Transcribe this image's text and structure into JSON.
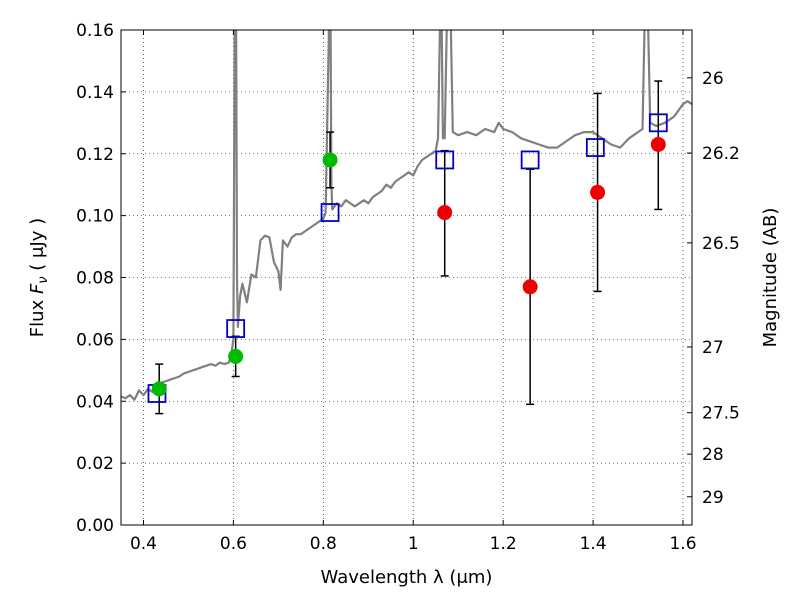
{
  "chart_data": {
    "type": "scatter",
    "title": "",
    "xlabel": "Wavelength  λ (μm)",
    "ylabel": "Flux  F_ν  ( μJy )",
    "ylabel_parts": {
      "prefix": "Flux  ",
      "symbol": "F",
      "subscript": "ν",
      "suffix": "  ( μJy )"
    },
    "y2label": "Magnitude (AB)",
    "xlim": [
      0.35,
      1.62
    ],
    "ylim": [
      0.0,
      0.16
    ],
    "grid": true,
    "xticks": [
      {
        "value": 0.4,
        "label": "0.4"
      },
      {
        "value": 0.6,
        "label": "0.6"
      },
      {
        "value": 0.8,
        "label": "0.8"
      },
      {
        "value": 1.0,
        "label": "1"
      },
      {
        "value": 1.2,
        "label": "1.2"
      },
      {
        "value": 1.4,
        "label": "1.4"
      },
      {
        "value": 1.6,
        "label": "1.6"
      }
    ],
    "yticks": [
      {
        "value": 0.0,
        "label": "0.00"
      },
      {
        "value": 0.02,
        "label": "0.02"
      },
      {
        "value": 0.04,
        "label": "0.04"
      },
      {
        "value": 0.06,
        "label": "0.06"
      },
      {
        "value": 0.08,
        "label": "0.08"
      },
      {
        "value": 0.1,
        "label": "0.10"
      },
      {
        "value": 0.12,
        "label": "0.12"
      },
      {
        "value": 0.14,
        "label": "0.14"
      },
      {
        "value": 0.16,
        "label": "0.16"
      }
    ],
    "magnitude_ticks": [
      {
        "value": 26,
        "label": "26"
      },
      {
        "value": 26.2,
        "label": "26.2"
      },
      {
        "value": 26.5,
        "label": "26.5"
      },
      {
        "value": 27,
        "label": "27"
      },
      {
        "value": 27.5,
        "label": "27.5"
      },
      {
        "value": 28,
        "label": "28"
      },
      {
        "value": 29,
        "label": "29"
      }
    ],
    "colors": {
      "model": "#808080",
      "model_points": "#0000cc",
      "detections": "#00bb00",
      "upper": "#ee0000",
      "errorbar": "#000000"
    },
    "series": [
      {
        "kind": "line",
        "points": [
          [
            0.35,
            0.0415
          ],
          [
            0.36,
            0.041
          ],
          [
            0.37,
            0.042
          ],
          [
            0.38,
            0.0405
          ],
          [
            0.39,
            0.0435
          ],
          [
            0.4,
            0.042
          ],
          [
            0.41,
            0.044
          ],
          [
            0.42,
            0.043
          ],
          [
            0.43,
            0.0455
          ],
          [
            0.44,
            0.046
          ],
          [
            0.45,
            0.0465
          ],
          [
            0.46,
            0.047
          ],
          [
            0.47,
            0.0475
          ],
          [
            0.48,
            0.048
          ],
          [
            0.49,
            0.049
          ],
          [
            0.5,
            0.0495
          ],
          [
            0.51,
            0.05
          ],
          [
            0.52,
            0.0505
          ],
          [
            0.53,
            0.051
          ],
          [
            0.54,
            0.0515
          ],
          [
            0.55,
            0.052
          ],
          [
            0.56,
            0.0515
          ],
          [
            0.57,
            0.0525
          ],
          [
            0.58,
            0.052
          ],
          [
            0.59,
            0.0525
          ],
          [
            0.595,
            0.055
          ],
          [
            0.6,
            0.06
          ],
          [
            0.603,
            0.165
          ],
          [
            0.606,
            0.165
          ],
          [
            0.608,
            0.08
          ],
          [
            0.61,
            0.064
          ],
          [
            0.615,
            0.074
          ],
          [
            0.62,
            0.078
          ],
          [
            0.63,
            0.072
          ],
          [
            0.64,
            0.081
          ],
          [
            0.65,
            0.08
          ],
          [
            0.66,
            0.092
          ],
          [
            0.67,
            0.0935
          ],
          [
            0.68,
            0.093
          ],
          [
            0.69,
            0.085
          ],
          [
            0.7,
            0.082
          ],
          [
            0.705,
            0.076
          ],
          [
            0.71,
            0.092
          ],
          [
            0.72,
            0.09
          ],
          [
            0.73,
            0.093
          ],
          [
            0.74,
            0.094
          ],
          [
            0.75,
            0.094
          ],
          [
            0.76,
            0.095
          ],
          [
            0.77,
            0.096
          ],
          [
            0.78,
            0.097
          ],
          [
            0.79,
            0.098
          ],
          [
            0.8,
            0.099
          ],
          [
            0.805,
            0.101
          ],
          [
            0.81,
            0.14
          ],
          [
            0.813,
            0.165
          ],
          [
            0.816,
            0.165
          ],
          [
            0.818,
            0.11
          ],
          [
            0.82,
            0.102
          ],
          [
            0.83,
            0.104
          ],
          [
            0.84,
            0.103
          ],
          [
            0.85,
            0.105
          ],
          [
            0.86,
            0.104
          ],
          [
            0.87,
            0.103
          ],
          [
            0.88,
            0.104
          ],
          [
            0.89,
            0.105
          ],
          [
            0.9,
            0.104
          ],
          [
            0.91,
            0.106
          ],
          [
            0.92,
            0.107
          ],
          [
            0.93,
            0.108
          ],
          [
            0.94,
            0.11
          ],
          [
            0.95,
            0.109
          ],
          [
            0.96,
            0.111
          ],
          [
            0.97,
            0.112
          ],
          [
            0.98,
            0.113
          ],
          [
            0.99,
            0.114
          ],
          [
            1.0,
            0.113
          ],
          [
            1.01,
            0.116
          ],
          [
            1.02,
            0.118
          ],
          [
            1.03,
            0.119
          ],
          [
            1.04,
            0.12
          ],
          [
            1.05,
            0.121
          ],
          [
            1.055,
            0.125
          ],
          [
            1.06,
            0.165
          ],
          [
            1.063,
            0.165
          ],
          [
            1.066,
            0.125
          ],
          [
            1.07,
            0.125
          ],
          [
            1.075,
            0.165
          ],
          [
            1.083,
            0.165
          ],
          [
            1.088,
            0.127
          ],
          [
            1.1,
            0.126
          ],
          [
            1.12,
            0.127
          ],
          [
            1.14,
            0.126
          ],
          [
            1.16,
            0.128
          ],
          [
            1.18,
            0.127
          ],
          [
            1.19,
            0.13
          ],
          [
            1.2,
            0.128
          ],
          [
            1.22,
            0.127
          ],
          [
            1.24,
            0.125
          ],
          [
            1.26,
            0.124
          ],
          [
            1.28,
            0.123
          ],
          [
            1.3,
            0.122
          ],
          [
            1.32,
            0.122
          ],
          [
            1.34,
            0.124
          ],
          [
            1.36,
            0.126
          ],
          [
            1.38,
            0.127
          ],
          [
            1.4,
            0.127
          ],
          [
            1.42,
            0.125
          ],
          [
            1.44,
            0.123
          ],
          [
            1.46,
            0.122
          ],
          [
            1.48,
            0.125
          ],
          [
            1.5,
            0.127
          ],
          [
            1.51,
            0.128
          ],
          [
            1.515,
            0.165
          ],
          [
            1.522,
            0.165
          ],
          [
            1.527,
            0.13
          ],
          [
            1.54,
            0.129
          ],
          [
            1.56,
            0.13
          ],
          [
            1.58,
            0.132
          ],
          [
            1.6,
            0.136
          ],
          [
            1.61,
            0.137
          ],
          [
            1.62,
            0.136
          ]
        ]
      },
      {
        "kind": "squares",
        "points": [
          [
            0.43,
            0.0425
          ],
          [
            0.605,
            0.0635
          ],
          [
            0.815,
            0.101
          ],
          [
            1.07,
            0.118
          ],
          [
            1.26,
            0.118
          ],
          [
            1.405,
            0.122
          ],
          [
            1.545,
            0.13
          ]
        ]
      },
      {
        "kind": "circles",
        "points": [
          [
            0.435,
            0.044
          ],
          [
            0.605,
            0.0545
          ],
          [
            0.815,
            0.118
          ]
        ]
      },
      {
        "kind": "circles",
        "points": [
          [
            1.07,
            0.101
          ],
          [
            1.26,
            0.077
          ],
          [
            1.41,
            0.1075
          ],
          [
            1.545,
            0.123
          ]
        ]
      }
    ],
    "errorbars": [
      {
        "x": 0.435,
        "low": 0.036,
        "high": 0.052
      },
      {
        "x": 0.605,
        "low": 0.048,
        "high": 0.061
      },
      {
        "x": 0.815,
        "low": 0.109,
        "high": 0.127
      },
      {
        "x": 1.07,
        "low": 0.0805,
        "high": 0.121
      },
      {
        "x": 1.26,
        "low": 0.039,
        "high": 0.115
      },
      {
        "x": 1.41,
        "low": 0.0755,
        "high": 0.1395
      },
      {
        "x": 1.545,
        "low": 0.102,
        "high": 0.1435
      }
    ]
  }
}
